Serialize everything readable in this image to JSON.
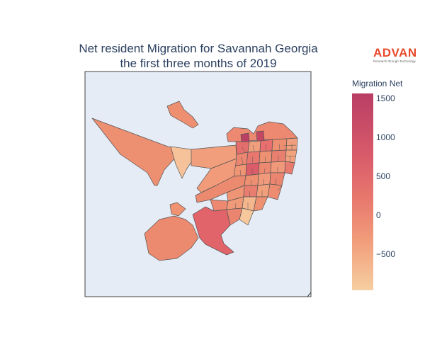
{
  "title_line1": "Net resident Migration for Savannah Georgia",
  "title_line2": "the first three months of 2019",
  "logo": {
    "name": "ADVAN",
    "tagline": "Research through Technology"
  },
  "colorbar": {
    "title": "Migration Net",
    "ticks": [
      "1500",
      "1000",
      "500",
      "0",
      "−500"
    ],
    "range": [
      -900,
      1600
    ],
    "colors": [
      "#f6cfa1",
      "#f19d7b",
      "#e97a6e",
      "#d7596a",
      "#b93e64"
    ]
  },
  "map": {
    "background": "#e5ecf6",
    "border_color": "#444444",
    "region_outline": "#555555"
  }
}
